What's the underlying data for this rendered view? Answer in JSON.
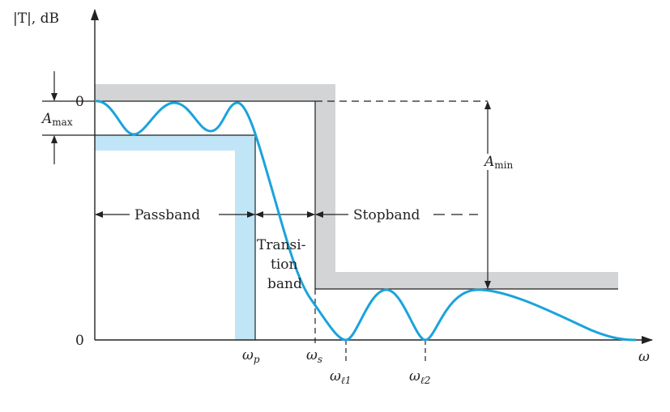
{
  "diagram": {
    "y_axis_label": "|T|, dB",
    "x_axis_label": "ω",
    "zero_top_label": "0",
    "zero_bottom_label": "0",
    "amax_label": {
      "main": "A",
      "sub": "max"
    },
    "amin_label": {
      "main": "A",
      "sub": "min"
    },
    "passband_label": "Passband",
    "stopband_label": "Stopband",
    "transition_label_lines": [
      "Transi-",
      "tion",
      "band"
    ],
    "wp_label": {
      "main": "ω",
      "sub": "p"
    },
    "ws_label": {
      "main": "ω",
      "sub": "s"
    },
    "wl1_label": {
      "main": "ω",
      "sub": "ℓ1"
    },
    "wl2_label": {
      "main": "ω",
      "sub": "ℓ2"
    },
    "colors": {
      "response_curve": "#1aa3dc",
      "passband_mask": "#bfe5f6",
      "stopband_mask": "#d3d4d6",
      "lines": "#222222"
    }
  }
}
